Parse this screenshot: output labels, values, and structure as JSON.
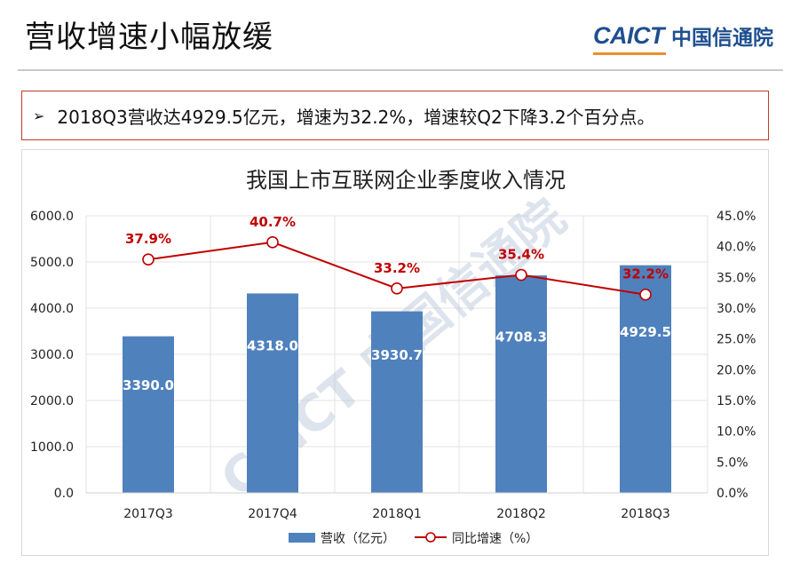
{
  "slide": {
    "title": "营收增速小幅放缓",
    "logo_en": "CAICT",
    "logo_cn": "中国信通院",
    "summary_bullet": "➢",
    "summary": "2018Q3营收达4929.5亿元，增速为32.2%，增速较Q2下降3.2个百分点。",
    "watermark": "CAICT 中国信通院"
  },
  "chart_data": {
    "type": "bar",
    "title": "我国上市互联网企业季度收入情况",
    "categories": [
      "2017Q3",
      "2017Q4",
      "2018Q1",
      "2018Q2",
      "2018Q3"
    ],
    "series": [
      {
        "name": "营收（亿元）",
        "type": "bar",
        "axis": "left",
        "values": [
          3390.0,
          4318.0,
          3930.7,
          4708.3,
          4929.5
        ],
        "labels": [
          "3390.0",
          "4318.0",
          "3930.7",
          "4708.3",
          "4929.5"
        ],
        "color": "#4f81bd"
      },
      {
        "name": "同比增速（%）",
        "type": "line",
        "axis": "right",
        "values": [
          37.9,
          40.7,
          33.2,
          35.4,
          32.2
        ],
        "labels": [
          "37.9%",
          "40.7%",
          "33.2%",
          "35.4%",
          "32.2%"
        ],
        "color": "#c00000"
      }
    ],
    "y_left": {
      "min": 0,
      "max": 6000,
      "ticks": [
        "0.0",
        "1000.0",
        "2000.0",
        "3000.0",
        "4000.0",
        "5000.0",
        "6000.0"
      ]
    },
    "y_right": {
      "min": 0,
      "max": 45,
      "ticks": [
        "0.0%",
        "5.0%",
        "10.0%",
        "15.0%",
        "20.0%",
        "25.0%",
        "30.0%",
        "35.0%",
        "40.0%",
        "45.0%"
      ]
    },
    "grid": true,
    "legend_position": "bottom"
  }
}
